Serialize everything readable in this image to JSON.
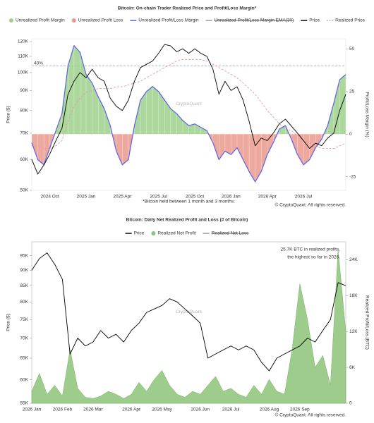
{
  "chart_data": [
    {
      "type": "line",
      "title": "Bitcoin: On-chain Trader Realized Price and Profit/Loss Margin*",
      "y_label": "Price ($)",
      "y2_label": "Profit/Loss Margin (%)",
      "footnote": "*Bitcoin held between 1 month and 3 months.",
      "watermark": "CryptoQuant",
      "copyright": "© CryptoQuant. All rights reserved.",
      "ylog": true,
      "ylim": [
        50000,
        122000
      ],
      "yticks": [
        {
          "value": 50000,
          "label": "50K"
        },
        {
          "value": 60000,
          "label": "60K"
        },
        {
          "value": 70000,
          "label": "70K"
        },
        {
          "value": 80000,
          "label": "80K"
        },
        {
          "value": 90000,
          "label": "90K"
        },
        {
          "value": 100000,
          "label": "100K"
        },
        {
          "value": 110000,
          "label": "110K"
        },
        {
          "value": 120000,
          "label": "120K"
        }
      ],
      "y2lim": [
        -33,
        56
      ],
      "y2ticks": [
        -25,
        0,
        25,
        50
      ],
      "reference_line": {
        "value": 40,
        "label": "40%",
        "axis": "y2"
      },
      "categories": [
        null,
        null,
        null,
        "2024 Oct",
        null,
        null,
        null,
        null,
        null,
        "2025 Jan",
        null,
        null,
        null,
        null,
        null,
        "2025 Apr",
        null,
        null,
        null,
        null,
        null,
        "2025 Jul",
        null,
        null,
        null,
        null,
        null,
        "2025 Oct",
        null,
        null,
        null,
        null,
        null,
        "2026 Jan",
        null,
        null,
        null,
        null,
        null,
        "2026 Apr",
        null,
        null,
        null,
        null,
        null,
        "2026 Jul",
        null,
        null,
        null,
        null,
        null,
        null,
        null
      ],
      "series": [
        {
          "name": "Unrealized Profit Margin",
          "color": "#9fd18c",
          "fill": "above_zero"
        },
        {
          "name": "Unrealized Profit Loss",
          "color": "#eb9a8e",
          "fill": "below_zero"
        },
        {
          "name": "Unrealized Profit/Loss Margin",
          "color": "#5b5ef0",
          "axis": "y2",
          "values": [
            -5,
            -15,
            -18,
            -8,
            2,
            12,
            40,
            52,
            48,
            35,
            30,
            22,
            15,
            5,
            -10,
            -18,
            -15,
            5,
            20,
            25,
            28,
            25,
            20,
            15,
            12,
            8,
            5,
            6,
            4,
            2,
            -5,
            -15,
            -10,
            -12,
            -8,
            -15,
            -22,
            -28,
            -22,
            -12,
            -5,
            3,
            5,
            -3,
            -12,
            -18,
            -15,
            -8,
            -3,
            5,
            18,
            32,
            35
          ]
        },
        {
          "name": "Unrealized Profit/Loss Margin EMA(30)",
          "color": "#999999",
          "hidden": true
        },
        {
          "name": "Price",
          "color": "#000000",
          "values": [
            60000,
            55000,
            58000,
            62000,
            67000,
            72000,
            88000,
            95000,
            100000,
            97000,
            102000,
            97000,
            95000,
            86000,
            82000,
            80000,
            85000,
            95000,
            103000,
            105000,
            107000,
            112000,
            118000,
            117000,
            113000,
            115000,
            112000,
            115000,
            112000,
            110000,
            102000,
            88000,
            95000,
            90000,
            92000,
            85000,
            75000,
            65000,
            68000,
            67000,
            70000,
            74000,
            76000,
            73000,
            70000,
            67000,
            64000,
            66000,
            65000,
            68000,
            70000,
            80000,
            88000
          ]
        },
        {
          "name": "Realized Price",
          "color": "#e39ab0",
          "dashed": true,
          "values": [
            65000,
            65000,
            64000,
            64000,
            65000,
            67000,
            75000,
            82000,
            86000,
            89000,
            90000,
            91000,
            91000,
            91000,
            92000,
            92000,
            93000,
            94000,
            95000,
            97000,
            99000,
            101000,
            103000,
            105000,
            107000,
            108000,
            108000,
            108000,
            108000,
            107000,
            105000,
            103000,
            101000,
            99000,
            97000,
            94000,
            91000,
            88000,
            84000,
            80000,
            77000,
            74000,
            72000,
            71000,
            69000,
            67000,
            66000,
            65000,
            64000,
            64000,
            64000,
            65000,
            66000
          ]
        }
      ]
    },
    {
      "type": "line",
      "title": "Bitcoin: Daily Net Realized Profit and Loss (# of Bitcoin)",
      "y_label": "Price ($)",
      "y2_label": "Realized Profit/Loss (BTC)",
      "annotation": [
        "25.7K BTC in realized profits,",
        "the highest so far in 2026."
      ],
      "watermark": "CryptoQuant",
      "copyright": "© CryptoQuant. All rights reserved.",
      "ylog": true,
      "ylim": [
        55000,
        100000
      ],
      "yticks": [
        {
          "value": 55000,
          "label": "55K"
        },
        {
          "value": 60000,
          "label": "60K"
        },
        {
          "value": 65000,
          "label": "65K"
        },
        {
          "value": 70000,
          "label": "70K"
        },
        {
          "value": 75000,
          "label": "75K"
        },
        {
          "value": 80000,
          "label": "80K"
        },
        {
          "value": 85000,
          "label": "85K"
        },
        {
          "value": 90000,
          "label": "90K"
        },
        {
          "value": 95000,
          "label": "95K"
        }
      ],
      "y2lim": [
        0,
        27000
      ],
      "y2ticks": [
        0,
        {
          "value": 6000,
          "label": "6K"
        },
        {
          "value": 12000,
          "label": "12K"
        },
        {
          "value": 18000,
          "label": "18K"
        },
        {
          "value": 24000,
          "label": "24K"
        }
      ],
      "categories": [
        "2026 Jan",
        null,
        null,
        null,
        "2026 Feb",
        null,
        null,
        null,
        "2026 Mar",
        null,
        null,
        null,
        null,
        "2026 Apr",
        null,
        null,
        null,
        "2026 May",
        null,
        null,
        null,
        null,
        "2026 Jun",
        null,
        null,
        null,
        "2026 Jul",
        null,
        null,
        null,
        null,
        "2026 Aug",
        null,
        null,
        null,
        "2026 Sep",
        null,
        null,
        null,
        null,
        null,
        null
      ],
      "series": [
        {
          "name": "Price",
          "color": "#000000",
          "values": [
            90000,
            94000,
            96000,
            92000,
            87000,
            66000,
            70000,
            68000,
            69000,
            72000,
            70000,
            71000,
            69000,
            72000,
            74000,
            77000,
            78000,
            79000,
            81000,
            80000,
            78000,
            76000,
            74000,
            65000,
            66000,
            67000,
            68000,
            67000,
            68000,
            67000,
            64000,
            62000,
            65000,
            66000,
            67000,
            68000,
            70000,
            69000,
            72000,
            75000,
            86000,
            85000
          ]
        },
        {
          "name": "Realized Net Profit",
          "color": "#8cc47a",
          "axis": "y2",
          "fill": "area",
          "values": [
            2000,
            5000,
            1500,
            3000,
            1200,
            9000,
            2500,
            1000,
            800,
            1200,
            2000,
            1500,
            800,
            1500,
            3500,
            2000,
            4000,
            5500,
            3000,
            1500,
            1000,
            2000,
            1500,
            3000,
            4500,
            2000,
            2500,
            1500,
            1000,
            3000,
            1500,
            4000,
            2000,
            1500,
            9000,
            20000,
            14000,
            6000,
            8000,
            3000,
            25700,
            12000
          ]
        },
        {
          "name": "Realized Net Loss",
          "color": "#999999",
          "hidden": true
        }
      ]
    }
  ]
}
